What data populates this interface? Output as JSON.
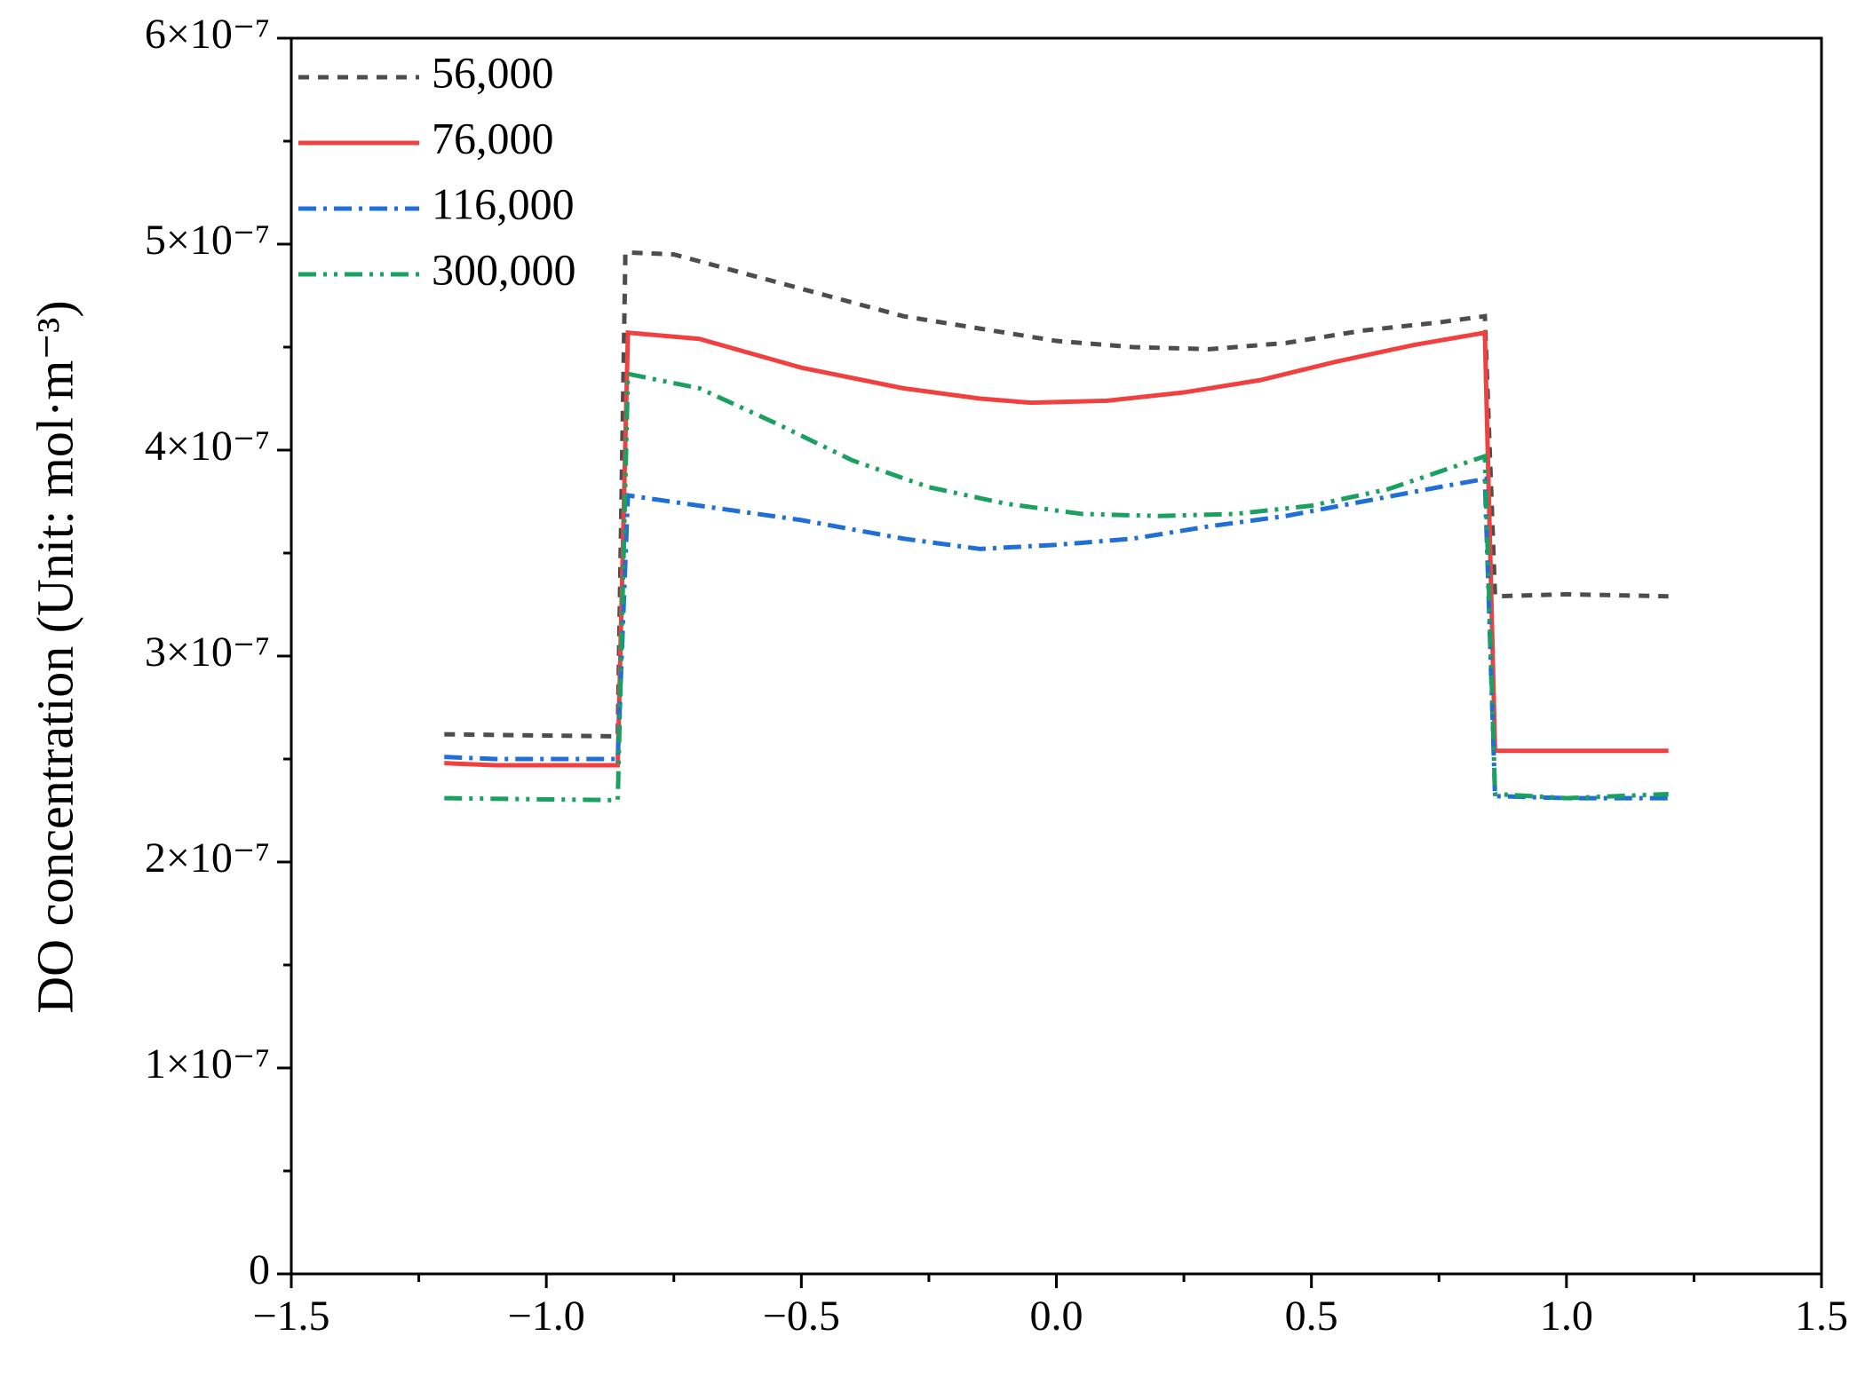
{
  "chart_data": {
    "type": "line",
    "y_label": "DO concentration (Unit: mol·m⁻³)",
    "xlim": [
      -1.5,
      1.5
    ],
    "xticks": [
      {
        "value": -1.5,
        "label": "−1.5"
      },
      {
        "value": -1.0,
        "label": "−1.0"
      },
      {
        "value": -0.5,
        "label": "−0.5"
      },
      {
        "value": 0.0,
        "label": "0.0"
      },
      0.5,
      {
        "value": 1.0,
        "label": "1.0"
      },
      1.5
    ],
    "ylim": [
      0,
      6e-07
    ],
    "yticks": [
      0,
      {
        "value": 1e-07,
        "label": "1×10⁻⁷"
      },
      {
        "value": 2e-07,
        "label": "2×10⁻⁷"
      },
      {
        "value": 3e-07,
        "label": "3×10⁻⁷"
      },
      {
        "value": 4e-07,
        "label": "4×10⁻⁷"
      },
      {
        "value": 5e-07,
        "label": "5×10⁻⁷"
      },
      {
        "value": 6e-07,
        "label": "6×10⁻⁷"
      }
    ],
    "legend": "top-left",
    "series": [
      {
        "name": "56,000",
        "color": "#4d4d4d",
        "dash": "12,10",
        "x": [
          -1.2,
          -0.86,
          -0.845,
          -0.75,
          -0.6,
          -0.45,
          -0.3,
          -0.15,
          0,
          0.15,
          0.3,
          0.45,
          0.6,
          0.75,
          0.84,
          0.86,
          1.0,
          1.2
        ],
        "values": [
          2.62e-07,
          2.61e-07,
          4.96e-07,
          4.95e-07,
          4.85e-07,
          4.75e-07,
          4.65e-07,
          4.59e-07,
          4.53e-07,
          4.5e-07,
          4.49e-07,
          4.52e-07,
          4.58e-07,
          4.62e-07,
          4.65e-07,
          3.29e-07,
          3.3e-07,
          3.29e-07
        ]
      },
      {
        "name": "76,000",
        "color": "#f04040",
        "dash": "none",
        "x": [
          -1.2,
          -1.1,
          -0.86,
          -0.84,
          -0.7,
          -0.5,
          -0.3,
          -0.15,
          -0.05,
          0.1,
          0.25,
          0.4,
          0.55,
          0.7,
          0.84,
          0.86,
          1.2
        ],
        "values": [
          2.48e-07,
          2.47e-07,
          2.47e-07,
          4.57e-07,
          4.54e-07,
          4.4e-07,
          4.3e-07,
          4.25e-07,
          4.23e-07,
          4.24e-07,
          4.28e-07,
          4.34e-07,
          4.43e-07,
          4.51e-07,
          4.57e-07,
          2.54e-07,
          2.54e-07
        ]
      },
      {
        "name": "116,000",
        "color": "#1f6fd6",
        "dash": "20,8,4,8",
        "x": [
          -1.2,
          -1.1,
          -0.86,
          -0.84,
          -0.7,
          -0.5,
          -0.3,
          -0.15,
          0,
          0.15,
          0.3,
          0.45,
          0.6,
          0.75,
          0.84,
          0.86,
          1.0,
          1.2
        ],
        "values": [
          2.51e-07,
          2.5e-07,
          2.5e-07,
          3.78e-07,
          3.73e-07,
          3.66e-07,
          3.57e-07,
          3.52e-07,
          3.54e-07,
          3.57e-07,
          3.63e-07,
          3.68e-07,
          3.75e-07,
          3.82e-07,
          3.86e-07,
          2.32e-07,
          2.31e-07,
          2.31e-07
        ]
      },
      {
        "name": "300,000",
        "color": "#1aa060",
        "dash": "20,8,4,8,4,8",
        "x": [
          -1.2,
          -0.86,
          -0.84,
          -0.7,
          -0.55,
          -0.4,
          -0.25,
          -0.1,
          0.05,
          0.2,
          0.35,
          0.5,
          0.65,
          0.84,
          0.86,
          1.0,
          1.2
        ],
        "values": [
          2.31e-07,
          2.3e-07,
          4.37e-07,
          4.3e-07,
          4.13e-07,
          3.95e-07,
          3.82e-07,
          3.74e-07,
          3.69e-07,
          3.68e-07,
          3.69e-07,
          3.73e-07,
          3.81e-07,
          3.97e-07,
          2.33e-07,
          2.31e-07,
          2.33e-07
        ]
      }
    ]
  }
}
